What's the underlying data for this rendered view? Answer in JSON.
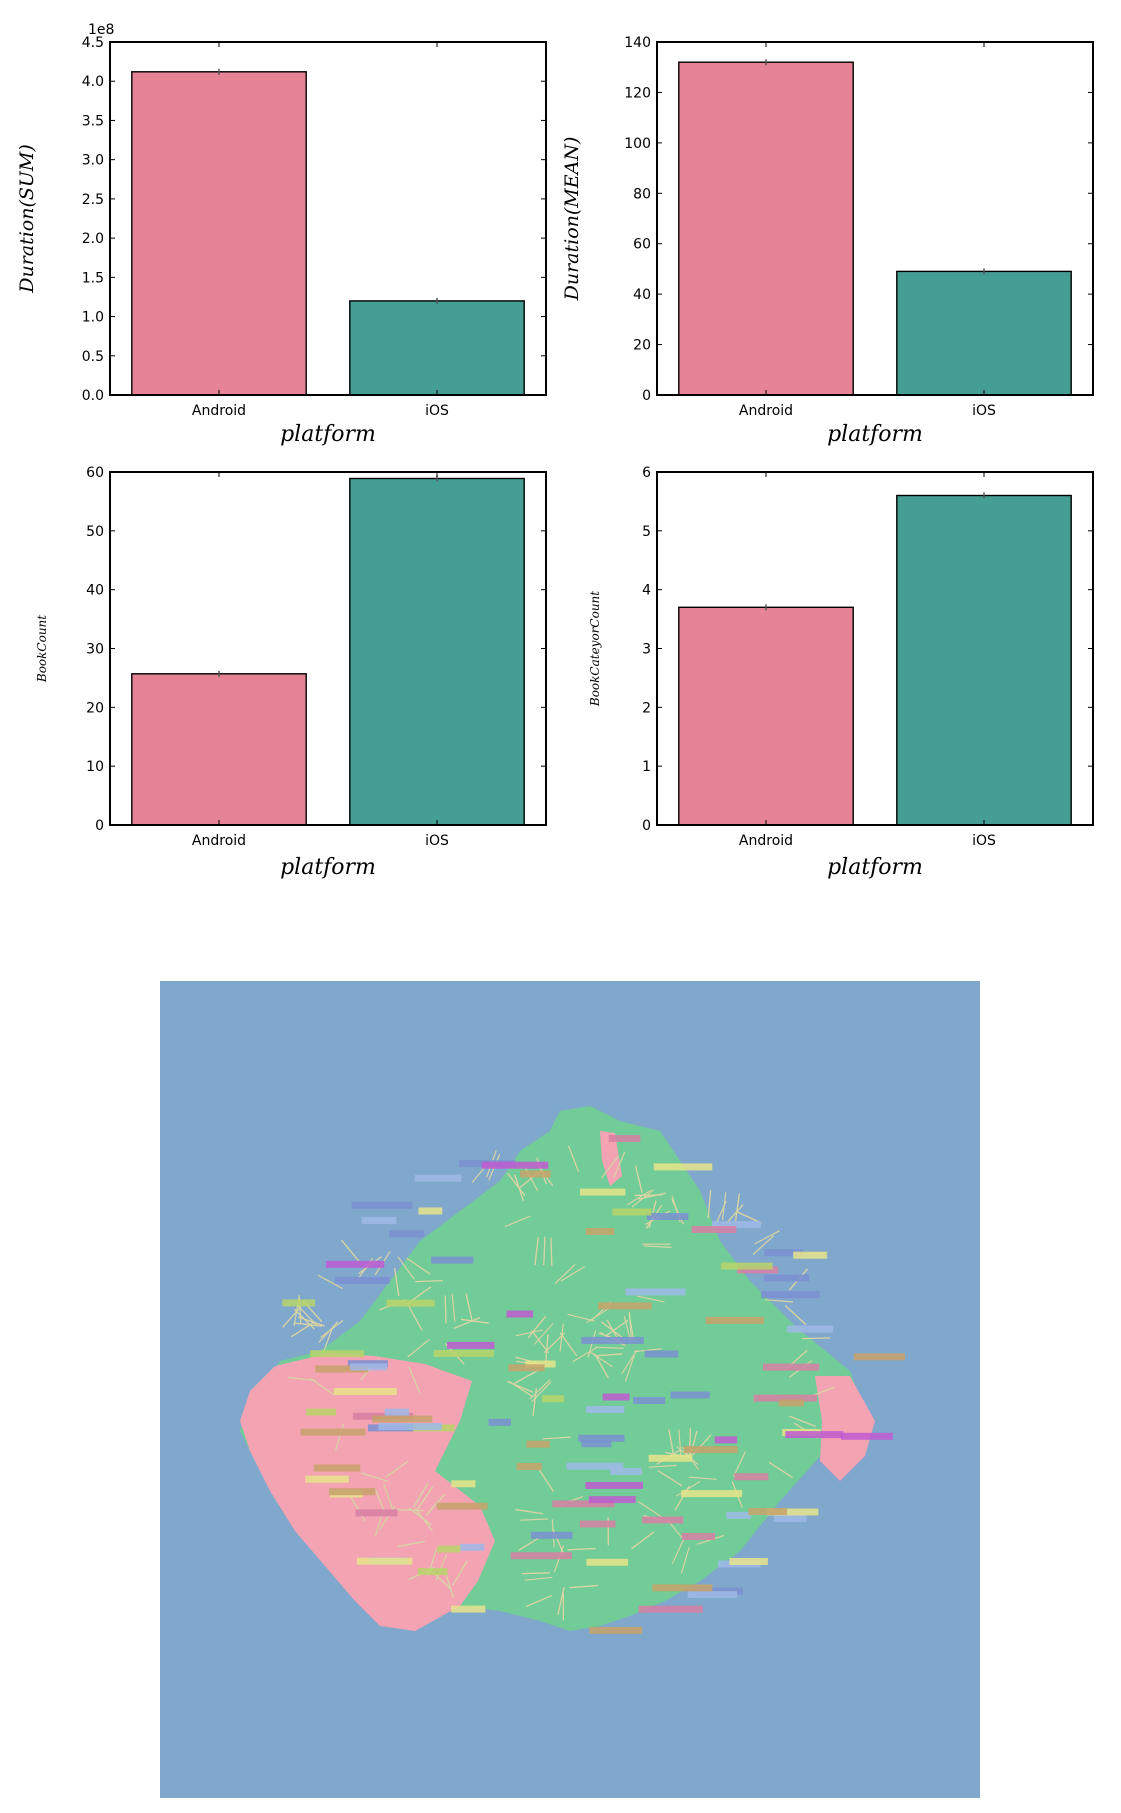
{
  "chart_data": [
    {
      "type": "bar",
      "categories": [
        "Android",
        "iOS"
      ],
      "values": [
        412000000,
        120000000
      ],
      "xlabel": "platform",
      "ylabel": "Duration(SUM)",
      "ylim": [
        0,
        450000000
      ],
      "yticks": [
        0,
        50000000,
        100000000,
        150000000,
        200000000,
        250000000,
        300000000,
        350000000,
        400000000,
        450000000
      ],
      "ytick_labels": [
        "0.0",
        "0.5",
        "1.0",
        "1.5",
        "2.0",
        "2.5",
        "3.0",
        "3.5",
        "4.0",
        "4.5"
      ],
      "offset_text": "1e8",
      "colors": [
        "#e68394",
        "#459e94"
      ],
      "grid": false
    },
    {
      "type": "bar",
      "categories": [
        "Android",
        "iOS"
      ],
      "values": [
        132,
        49
      ],
      "xlabel": "platform",
      "ylabel": "Duration(MEAN)",
      "ylim": [
        0,
        140
      ],
      "yticks": [
        0,
        20,
        40,
        60,
        80,
        100,
        120,
        140
      ],
      "ytick_labels": [
        "0",
        "20",
        "40",
        "60",
        "80",
        "100",
        "120",
        "140"
      ],
      "colors": [
        "#e68394",
        "#459e94"
      ],
      "grid": false
    },
    {
      "type": "bar",
      "categories": [
        "Android",
        "iOS"
      ],
      "values": [
        25.7,
        58.9
      ],
      "xlabel": "platform",
      "ylabel": "BookCount",
      "ylim": [
        0,
        60
      ],
      "yticks": [
        0,
        10,
        20,
        30,
        40,
        50,
        60
      ],
      "ytick_labels": [
        "0",
        "10",
        "20",
        "30",
        "40",
        "50",
        "60"
      ],
      "colors": [
        "#e68394",
        "#459e94"
      ],
      "grid": false
    },
    {
      "type": "bar",
      "categories": [
        "Android",
        "iOS"
      ],
      "values": [
        3.7,
        5.6
      ],
      "xlabel": "platform",
      "ylabel": "BookCateyorCount",
      "ylim": [
        0,
        6
      ],
      "yticks": [
        0,
        1,
        2,
        3,
        4,
        5,
        6
      ],
      "ytick_labels": [
        "0",
        "1",
        "2",
        "3",
        "4",
        "5",
        "6"
      ],
      "colors": [
        "#e68394",
        "#459e94"
      ],
      "grid": false
    }
  ],
  "map_figure": {
    "background_color": "#80a7cc",
    "region_colors": [
      "#71cc98",
      "#f4a3b3"
    ],
    "boundary_color": "#d8d4a4",
    "label_chip_colors": [
      "#e8e48a",
      "#d77fa3",
      "#9fb8e6",
      "#c7a26a",
      "#b9d46a",
      "#c05ad0",
      "#7a8fd0"
    ]
  }
}
